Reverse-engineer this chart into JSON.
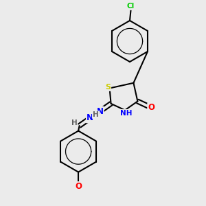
{
  "bg_color": "#ebebeb",
  "atom_colors": {
    "C": "#000000",
    "H": "#606060",
    "N": "#0000ff",
    "O": "#ff0000",
    "S": "#cccc00",
    "Cl": "#00cc00"
  },
  "bond_color": "#000000",
  "bond_width": 1.5,
  "figsize": [
    3.0,
    3.0
  ],
  "dpi": 100
}
